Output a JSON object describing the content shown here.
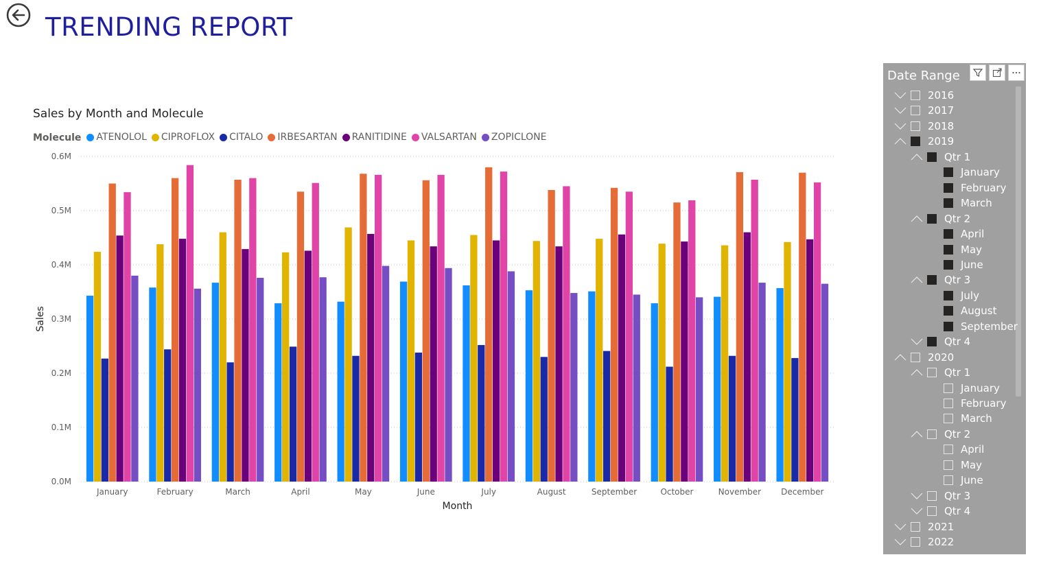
{
  "header": {
    "title": "TRENDING REPORT"
  },
  "chart_data": {
    "type": "bar",
    "title": "Sales by Month and Molecule",
    "legend_title": "Molecule",
    "legend_position": "top-left",
    "xlabel": "Month",
    "ylabel": "Sales",
    "ylim": [
      0,
      0.6
    ],
    "grid": true,
    "y_ticks": [
      "0.0M",
      "0.1M",
      "0.2M",
      "0.3M",
      "0.4M",
      "0.5M",
      "0.6M"
    ],
    "categories": [
      "January",
      "February",
      "March",
      "April",
      "May",
      "June",
      "July",
      "August",
      "September",
      "October",
      "November",
      "December"
    ],
    "series": [
      {
        "name": "ATENOLOL",
        "color": "#118dff",
        "values": [
          0.343,
          0.358,
          0.367,
          0.329,
          0.332,
          0.369,
          0.362,
          0.353,
          0.351,
          0.329,
          0.341,
          0.357
        ]
      },
      {
        "name": "CIPROFLOX",
        "color": "#e0b400",
        "values": [
          0.424,
          0.438,
          0.46,
          0.423,
          0.469,
          0.445,
          0.455,
          0.444,
          0.448,
          0.439,
          0.436,
          0.442
        ]
      },
      {
        "name": "CITALO",
        "color": "#1a2aa6",
        "values": [
          0.227,
          0.244,
          0.22,
          0.249,
          0.232,
          0.238,
          0.252,
          0.23,
          0.241,
          0.212,
          0.232,
          0.228
        ]
      },
      {
        "name": "IRBESARTAN",
        "color": "#e66c37",
        "values": [
          0.55,
          0.56,
          0.557,
          0.535,
          0.568,
          0.556,
          0.58,
          0.538,
          0.542,
          0.515,
          0.571,
          0.57
        ]
      },
      {
        "name": "RANITIDINE",
        "color": "#6b007b",
        "values": [
          0.454,
          0.448,
          0.429,
          0.426,
          0.457,
          0.434,
          0.445,
          0.434,
          0.456,
          0.443,
          0.46,
          0.447
        ]
      },
      {
        "name": "VALSARTAN",
        "color": "#e044a7",
        "values": [
          0.534,
          0.584,
          0.56,
          0.551,
          0.566,
          0.566,
          0.572,
          0.545,
          0.535,
          0.519,
          0.557,
          0.552
        ]
      },
      {
        "name": "ZOPICLONE",
        "color": "#744ec2",
        "values": [
          0.38,
          0.356,
          0.376,
          0.377,
          0.398,
          0.394,
          0.388,
          0.348,
          0.345,
          0.34,
          0.367,
          0.365
        ]
      }
    ]
  },
  "slicer": {
    "title": "Date Range",
    "rows": [
      {
        "label": "2016",
        "level": 0,
        "expanded": false,
        "checked": false
      },
      {
        "label": "2017",
        "level": 0,
        "expanded": false,
        "checked": false
      },
      {
        "label": "2018",
        "level": 0,
        "expanded": false,
        "checked": false
      },
      {
        "label": "2019",
        "level": 0,
        "expanded": true,
        "checked": true
      },
      {
        "label": "Qtr 1",
        "level": 1,
        "expanded": true,
        "checked": true
      },
      {
        "label": "January",
        "level": 2,
        "checked": true
      },
      {
        "label": "February",
        "level": 2,
        "checked": true
      },
      {
        "label": "March",
        "level": 2,
        "checked": true
      },
      {
        "label": "Qtr 2",
        "level": 1,
        "expanded": true,
        "checked": true
      },
      {
        "label": "April",
        "level": 2,
        "checked": true
      },
      {
        "label": "May",
        "level": 2,
        "checked": true
      },
      {
        "label": "June",
        "level": 2,
        "checked": true
      },
      {
        "label": "Qtr 3",
        "level": 1,
        "expanded": true,
        "checked": true
      },
      {
        "label": "July",
        "level": 2,
        "checked": true
      },
      {
        "label": "August",
        "level": 2,
        "checked": true
      },
      {
        "label": "September",
        "level": 2,
        "checked": true
      },
      {
        "label": "Qtr 4",
        "level": 1,
        "expanded": false,
        "checked": true
      },
      {
        "label": "2020",
        "level": 0,
        "expanded": true,
        "checked": false
      },
      {
        "label": "Qtr 1",
        "level": 1,
        "expanded": true,
        "checked": false
      },
      {
        "label": "January",
        "level": 2,
        "checked": false
      },
      {
        "label": "February",
        "level": 2,
        "checked": false
      },
      {
        "label": "March",
        "level": 2,
        "checked": false
      },
      {
        "label": "Qtr 2",
        "level": 1,
        "expanded": true,
        "checked": false
      },
      {
        "label": "April",
        "level": 2,
        "checked": false
      },
      {
        "label": "May",
        "level": 2,
        "checked": false
      },
      {
        "label": "June",
        "level": 2,
        "checked": false
      },
      {
        "label": "Qtr 3",
        "level": 1,
        "expanded": false,
        "checked": false
      },
      {
        "label": "Qtr 4",
        "level": 1,
        "expanded": false,
        "checked": false
      },
      {
        "label": "2021",
        "level": 0,
        "expanded": false,
        "checked": false
      },
      {
        "label": "2022",
        "level": 0,
        "expanded": false,
        "checked": false
      }
    ]
  }
}
